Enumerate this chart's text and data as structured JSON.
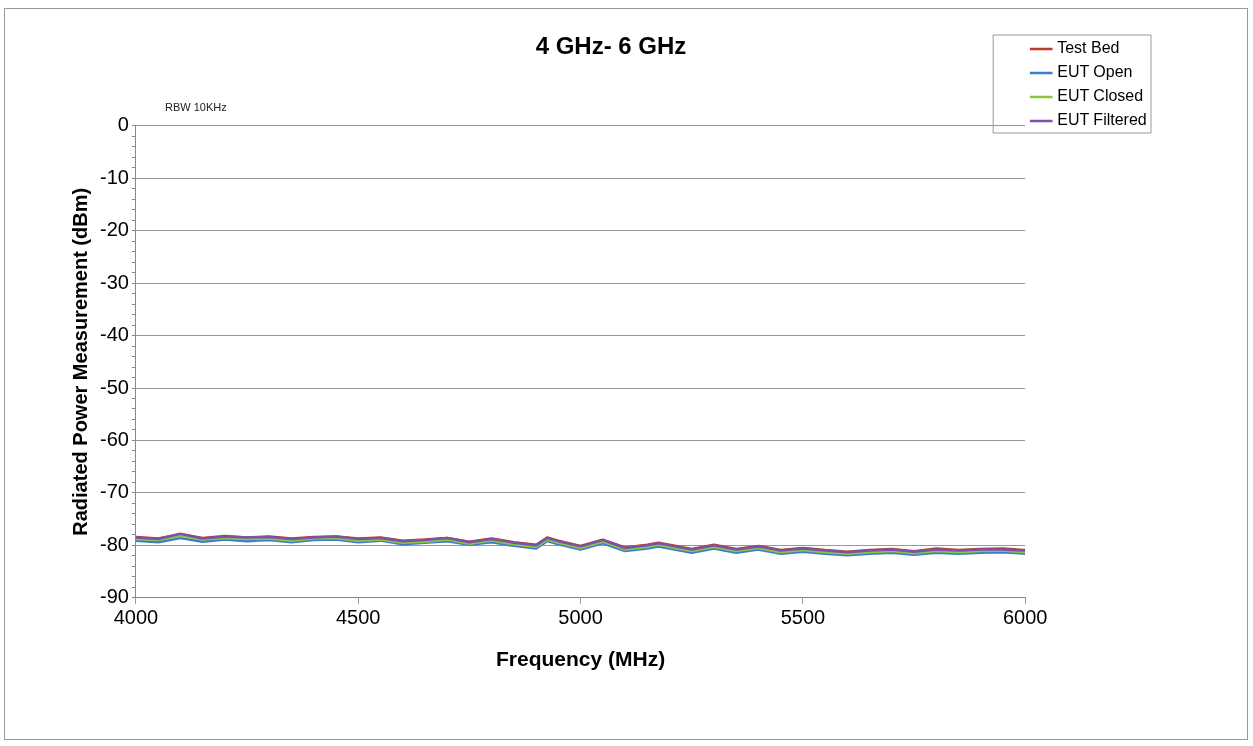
{
  "chart_data": {
    "type": "line",
    "title": "4 GHz- 6 GHz",
    "xlabel": "Frequency (MHz)",
    "ylabel": "Radiated Power Measurement (dBm)",
    "annotations": [
      "RBW 10KHz"
    ],
    "x": [
      4000,
      4050,
      4100,
      4150,
      4200,
      4250,
      4300,
      4350,
      4400,
      4450,
      4500,
      4550,
      4600,
      4650,
      4700,
      4750,
      4800,
      4850,
      4900,
      4925,
      4950,
      5000,
      5050,
      5100,
      5150,
      5175,
      5200,
      5250,
      5300,
      5350,
      5400,
      5450,
      5500,
      5550,
      5600,
      5650,
      5700,
      5750,
      5800,
      5850,
      5900,
      5950,
      6000
    ],
    "series": [
      {
        "name": "Test Bed",
        "color": "#c0392b",
        "values": [
          -78.4,
          -78.7,
          -77.9,
          -78.6,
          -78.2,
          -78.5,
          -78.3,
          -78.7,
          -78.4,
          -78.3,
          -78.7,
          -78.5,
          -79.1,
          -78.9,
          -78.6,
          -79.3,
          -78.7,
          -79.4,
          -79.9,
          -78.5,
          -79.1,
          -80.1,
          -78.9,
          -80.4,
          -79.9,
          -79.5,
          -79.9,
          -80.7,
          -79.9,
          -80.7,
          -80.1,
          -80.9,
          -80.5,
          -80.9,
          -81.2,
          -80.9,
          -80.7,
          -81.1,
          -80.6,
          -80.9,
          -80.7,
          -80.6,
          -80.9
        ]
      },
      {
        "name": "EUT Open",
        "color": "#3a7dd0",
        "values": [
          -79.1,
          -79.4,
          -78.6,
          -79.3,
          -78.9,
          -79.2,
          -79.0,
          -79.4,
          -79.0,
          -78.9,
          -79.4,
          -79.1,
          -79.8,
          -79.5,
          -79.2,
          -79.9,
          -79.4,
          -80.1,
          -80.6,
          -79.2,
          -79.8,
          -80.8,
          -79.6,
          -81.1,
          -80.6,
          -80.2,
          -80.6,
          -81.4,
          -80.6,
          -81.4,
          -80.8,
          -81.6,
          -81.2,
          -81.6,
          -81.9,
          -81.6,
          -81.4,
          -81.8,
          -81.4,
          -81.6,
          -81.4,
          -81.3,
          -81.6
        ]
      },
      {
        "name": "EUT Closed",
        "color": "#8cc63f",
        "values": [
          -78.8,
          -79.0,
          -78.2,
          -78.9,
          -78.6,
          -78.8,
          -78.7,
          -79.1,
          -78.7,
          -78.6,
          -79.1,
          -78.9,
          -79.5,
          -79.3,
          -78.9,
          -79.7,
          -79.1,
          -79.8,
          -80.3,
          -78.9,
          -79.5,
          -80.5,
          -79.3,
          -80.8,
          -80.3,
          -79.9,
          -80.3,
          -81.1,
          -80.3,
          -81.1,
          -80.5,
          -81.3,
          -80.9,
          -81.3,
          -81.6,
          -81.3,
          -81.1,
          -81.5,
          -81.1,
          -81.3,
          -81.1,
          -81.0,
          -81.3
        ]
      },
      {
        "name": "EUT Filtered",
        "color": "#7b52a8",
        "values": [
          -78.5,
          -78.8,
          -77.8,
          -78.7,
          -78.3,
          -78.5,
          -78.4,
          -78.8,
          -78.5,
          -78.3,
          -78.8,
          -78.6,
          -79.2,
          -79.0,
          -78.6,
          -79.4,
          -78.8,
          -79.5,
          -80.0,
          -78.6,
          -79.2,
          -80.2,
          -79.0,
          -80.5,
          -80.0,
          -79.6,
          -80.0,
          -80.8,
          -80.0,
          -80.8,
          -80.2,
          -81.0,
          -80.6,
          -81.0,
          -81.3,
          -81.0,
          -80.8,
          -81.2,
          -80.8,
          -81.0,
          -80.8,
          -80.8,
          -81.0
        ]
      }
    ],
    "xlim": [
      4000,
      6000
    ],
    "xticks": [
      4000,
      4500,
      5000,
      5500,
      6000
    ],
    "ylim": [
      -90,
      0
    ],
    "yticks": [
      -90,
      {
        "value": -88,
        "label": null
      },
      {
        "value": -86,
        "label": null
      },
      {
        "value": -84,
        "label": null
      },
      {
        "value": -82,
        "label": null
      },
      -80,
      {
        "value": -78,
        "label": null
      },
      {
        "value": -76,
        "label": null
      },
      {
        "value": -74,
        "label": null
      },
      {
        "value": -72,
        "label": null
      },
      -70,
      {
        "value": -68,
        "label": null
      },
      {
        "value": -66,
        "label": null
      },
      {
        "value": -64,
        "label": null
      },
      {
        "value": -62,
        "label": null
      },
      -60,
      {
        "value": -58,
        "label": null
      },
      {
        "value": -56,
        "label": null
      },
      {
        "value": -54,
        "label": null
      },
      {
        "value": -52,
        "label": null
      },
      -50,
      {
        "value": -48,
        "label": null
      },
      {
        "value": -46,
        "label": null
      },
      {
        "value": -44,
        "label": null
      },
      {
        "value": -42,
        "label": null
      },
      -40,
      {
        "value": -38,
        "label": null
      },
      {
        "value": -36,
        "label": null
      },
      {
        "value": -34,
        "label": null
      },
      {
        "value": -32,
        "label": null
      },
      -30,
      {
        "value": -28,
        "label": null
      },
      {
        "value": -26,
        "label": null
      },
      {
        "value": -24,
        "label": null
      },
      {
        "value": -22,
        "label": null
      },
      -20,
      {
        "value": -18,
        "label": null
      },
      {
        "value": -16,
        "label": null
      },
      {
        "value": -14,
        "label": null
      },
      {
        "value": -12,
        "label": null
      },
      -10,
      {
        "value": -8,
        "label": null
      },
      {
        "value": -6,
        "label": null
      },
      {
        "value": -4,
        "label": null
      },
      {
        "value": -2,
        "label": null
      },
      0
    ],
    "grid": "y",
    "legend": "top right",
    "marker": "none",
    "line_style": "solid"
  }
}
